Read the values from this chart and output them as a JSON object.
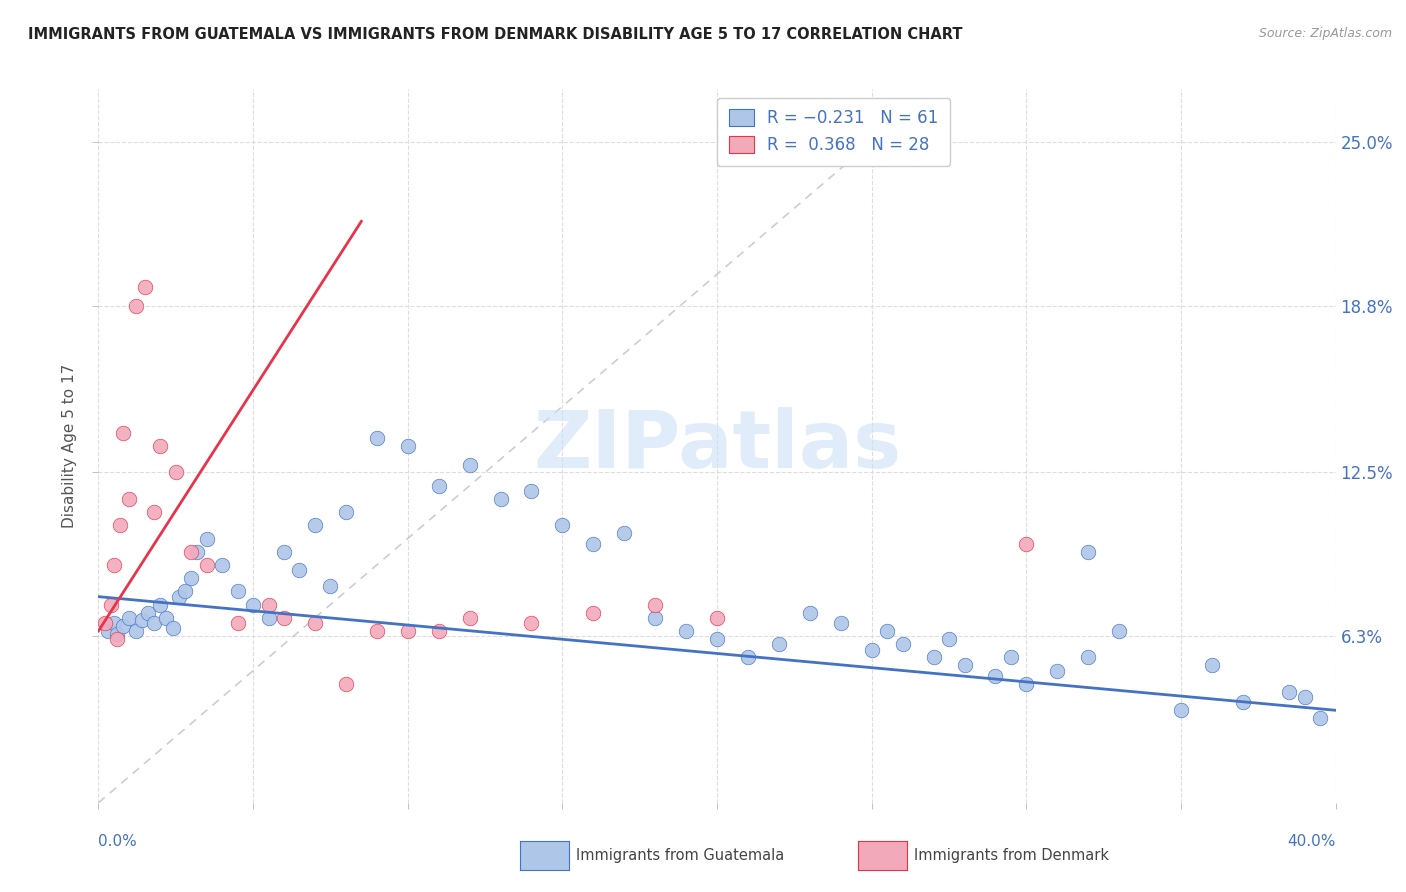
{
  "title": "IMMIGRANTS FROM GUATEMALA VS IMMIGRANTS FROM DENMARK DISABILITY AGE 5 TO 17 CORRELATION CHART",
  "source": "Source: ZipAtlas.com",
  "ylabel": "Disability Age 5 to 17",
  "ytick_labels": [
    "6.3%",
    "12.5%",
    "18.8%",
    "25.0%"
  ],
  "ytick_values": [
    6.3,
    12.5,
    18.8,
    25.0
  ],
  "xlim": [
    0.0,
    40.0
  ],
  "ylim": [
    0.0,
    27.0
  ],
  "watermark_text": "ZIPatlas",
  "color_guatemala": "#aec6e8",
  "color_denmark": "#f2aabb",
  "color_line_guatemala": "#4472c4",
  "color_line_denmark": "#e8334a",
  "color_diagonal": "#c0c0d0",
  "guatemala_x": [
    0.3,
    0.5,
    0.6,
    0.8,
    1.0,
    1.2,
    1.4,
    1.6,
    1.8,
    2.0,
    2.2,
    2.4,
    2.6,
    2.8,
    3.0,
    3.2,
    3.5,
    4.0,
    4.5,
    5.0,
    5.5,
    6.0,
    6.5,
    7.0,
    7.5,
    8.0,
    9.0,
    10.0,
    11.0,
    12.0,
    13.0,
    14.0,
    15.0,
    16.0,
    17.0,
    18.0,
    19.0,
    20.0,
    21.0,
    22.0,
    23.0,
    24.0,
    25.0,
    26.0,
    27.0,
    28.0,
    29.0,
    30.0,
    31.0,
    32.0,
    33.0,
    35.0,
    37.0,
    38.5,
    39.5,
    25.5,
    27.5,
    29.5,
    32.0,
    36.0,
    39.0
  ],
  "guatemala_y": [
    6.5,
    6.8,
    6.4,
    6.7,
    7.0,
    6.5,
    6.9,
    7.2,
    6.8,
    7.5,
    7.0,
    6.6,
    7.8,
    8.0,
    8.5,
    9.5,
    10.0,
    9.0,
    8.0,
    7.5,
    7.0,
    9.5,
    8.8,
    10.5,
    8.2,
    11.0,
    13.8,
    13.5,
    12.0,
    12.8,
    11.5,
    11.8,
    10.5,
    9.8,
    10.2,
    7.0,
    6.5,
    6.2,
    5.5,
    6.0,
    7.2,
    6.8,
    5.8,
    6.0,
    5.5,
    5.2,
    4.8,
    4.5,
    5.0,
    5.5,
    6.5,
    3.5,
    3.8,
    4.2,
    3.2,
    6.5,
    6.2,
    5.5,
    9.5,
    5.2,
    4.0
  ],
  "denmark_x": [
    0.2,
    0.4,
    0.5,
    0.6,
    0.7,
    0.8,
    1.0,
    1.2,
    1.5,
    1.8,
    2.0,
    2.5,
    3.0,
    3.5,
    4.5,
    5.5,
    7.0,
    9.0,
    10.0,
    11.0,
    12.0,
    14.0,
    16.0,
    18.0,
    20.0,
    30.0,
    6.0,
    8.0
  ],
  "denmark_y": [
    6.8,
    7.5,
    9.0,
    6.2,
    10.5,
    14.0,
    11.5,
    18.8,
    19.5,
    11.0,
    13.5,
    12.5,
    9.5,
    9.0,
    6.8,
    7.5,
    6.8,
    6.5,
    6.5,
    6.5,
    7.0,
    6.8,
    7.2,
    7.5,
    7.0,
    9.8,
    7.0,
    4.5
  ],
  "guat_line_x0": 0.0,
  "guat_line_x1": 40.0,
  "guat_line_y0": 7.8,
  "guat_line_y1": 3.5,
  "denm_line_x0": 0.0,
  "denm_line_x1": 8.5,
  "denm_line_y0": 6.5,
  "denm_line_y1": 22.0,
  "diag_x0": 0.0,
  "diag_x1": 26.0,
  "diag_y0": 0.0,
  "diag_y1": 26.0
}
